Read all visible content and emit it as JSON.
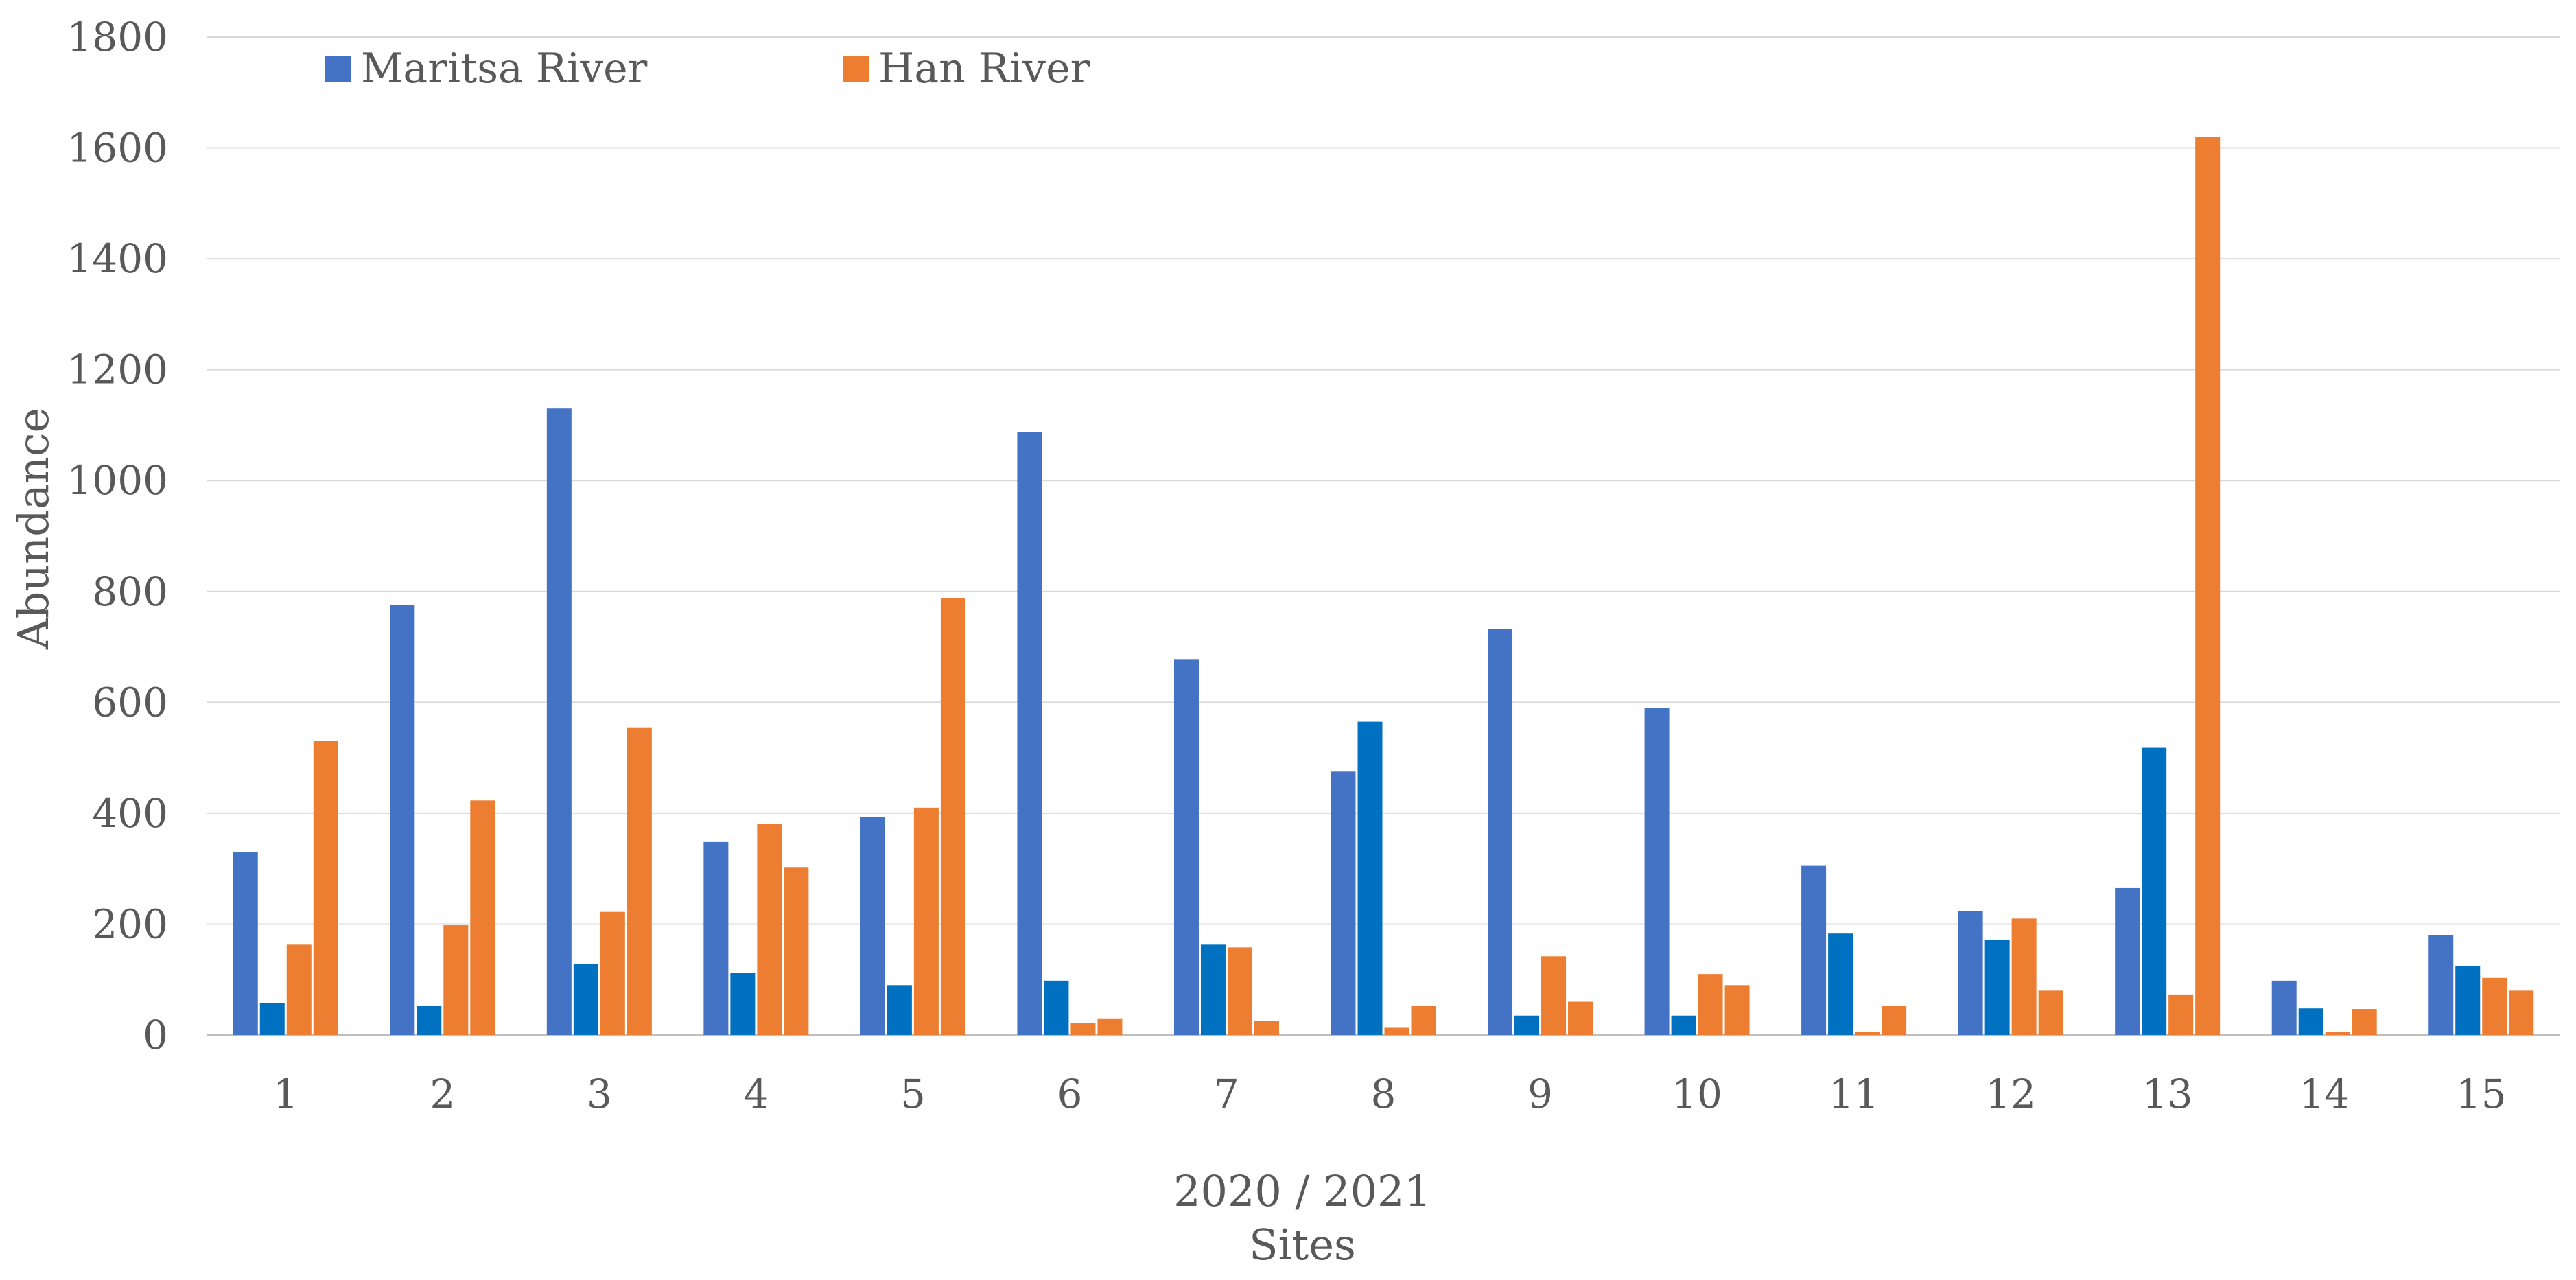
{
  "chart_data": {
    "type": "bar",
    "categories": [
      "1",
      "2",
      "3",
      "4",
      "5",
      "6",
      "7",
      "8",
      "9",
      "10",
      "11",
      "12",
      "13",
      "14",
      "15"
    ],
    "series": [
      {
        "name": "Maritsa River",
        "color": "#4472C4",
        "values": [
          330,
          775,
          1130,
          348,
          393,
          1088,
          678,
          475,
          732,
          590,
          305,
          223,
          265,
          98,
          180
        ]
      },
      {
        "name": "",
        "color": "#0070C0",
        "values": [
          57,
          52,
          128,
          112,
          90,
          98,
          163,
          565,
          35,
          35,
          183,
          172,
          518,
          48,
          125
        ]
      },
      {
        "name": "Han River",
        "color": "#ED7D31",
        "values": [
          163,
          198,
          222,
          380,
          410,
          22,
          158,
          13,
          142,
          110,
          5,
          210,
          72,
          5,
          103
        ]
      },
      {
        "name": "",
        "color": "#ED7D31",
        "values": [
          530,
          423,
          555,
          303,
          788,
          30,
          25,
          52,
          60,
          90,
          52,
          80,
          1620,
          47,
          80
        ]
      }
    ],
    "legend": [
      {
        "label": "Maritsa River",
        "color": "#4472C4"
      },
      {
        "label": "Han River",
        "color": "#ED7D31"
      }
    ],
    "legend_position": "top-left",
    "title": "",
    "xlabel_line1": "2020 / 2021",
    "xlabel_line2": "Sites",
    "ylabel": "Abundance",
    "ylim": [
      0,
      1800
    ],
    "yticks": [
      0,
      200,
      400,
      600,
      800,
      1000,
      1200,
      1400,
      1600,
      1800
    ],
    "grid": true
  }
}
